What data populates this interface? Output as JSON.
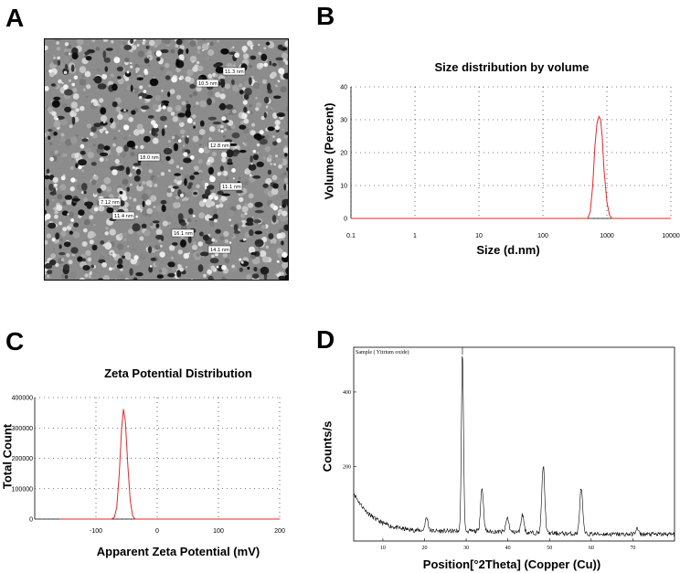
{
  "panels": {
    "a": {
      "letter": "A"
    },
    "b": {
      "letter": "B"
    },
    "c": {
      "letter": "C"
    },
    "d": {
      "letter": "D"
    }
  },
  "micrograph": {
    "size_labels": [
      "11.3 nm",
      "10.5 nm",
      "12.8 nm",
      "18.0 nm",
      "11.1 nm",
      "7.12 nm",
      "11.4 nm",
      "16.1 nm",
      "14.1 nm"
    ]
  },
  "chart_data": [
    {
      "type": "line",
      "title": "Size distribution by volume",
      "xlabel": "Size (d.nm)",
      "ylabel": "Volume (Percent)",
      "xscale": "log",
      "xlim": [
        0.1,
        10000
      ],
      "ylim": [
        0,
        40
      ],
      "xticks": [
        "0.1",
        "1",
        "10",
        "100",
        "1000",
        "10000"
      ],
      "yticks": [
        "0",
        "10",
        "20",
        "30",
        "40"
      ],
      "grid": true,
      "series": [
        {
          "color": "#e8252a",
          "x": [
            0.1,
            10,
            400,
            500,
            550,
            600,
            650,
            700,
            750,
            800,
            850,
            900,
            1000,
            1100,
            1200,
            10000
          ],
          "y": [
            0,
            0,
            0,
            0,
            2,
            10,
            22,
            29,
            31,
            30,
            24,
            15,
            5,
            1,
            0,
            0
          ]
        }
      ]
    },
    {
      "type": "line",
      "title": "Zeta Potential Distribution",
      "xlabel": "Apparent Zeta Potential (mV)",
      "ylabel": "Total Count",
      "xlim": [
        -200,
        200
      ],
      "ylim": [
        0,
        400000
      ],
      "xticks": [
        "-100",
        "0",
        "100",
        "200"
      ],
      "yticks": [
        "0",
        "100000",
        "200000",
        "300000",
        "400000"
      ],
      "grid": true,
      "series": [
        {
          "color": "#e8252a",
          "x": [
            -160,
            -75,
            -70,
            -66,
            -62,
            -58,
            -55,
            -52,
            -48,
            -44,
            -40,
            -36,
            -30,
            200
          ],
          "y": [
            0,
            0,
            5000,
            40000,
            150000,
            300000,
            362000,
            320000,
            180000,
            60000,
            10000,
            0,
            0,
            0
          ]
        }
      ]
    },
    {
      "type": "line",
      "title": "",
      "annotation": "Sample ( Yttrium oxide)",
      "xlabel": "Position[°2Theta] (Copper (Cu))",
      "ylabel": "Counts/s",
      "xlim": [
        3,
        80
      ],
      "ylim": [
        0,
        520
      ],
      "xticks": [
        "10",
        "20",
        "30",
        "40",
        "50",
        "60",
        "70"
      ],
      "yticks": [
        "200",
        "400"
      ],
      "grid": false,
      "peaks": [
        {
          "x": 20.5,
          "y": 55
        },
        {
          "x": 29.1,
          "y": 500
        },
        {
          "x": 33.8,
          "y": 135
        },
        {
          "x": 39.9,
          "y": 58
        },
        {
          "x": 43.5,
          "y": 68
        },
        {
          "x": 48.5,
          "y": 200
        },
        {
          "x": 57.6,
          "y": 142
        },
        {
          "x": 71.0,
          "y": 35
        }
      ]
    }
  ]
}
